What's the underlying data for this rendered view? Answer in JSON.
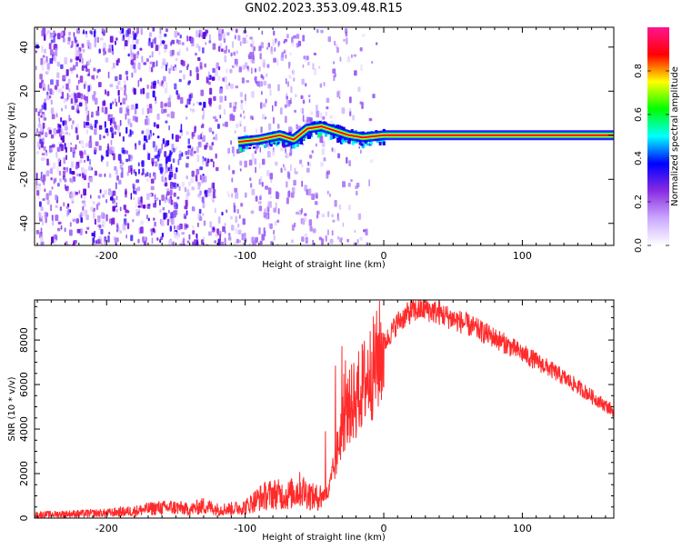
{
  "title": "GN02.2023.353.09.48.R15",
  "chart_data": [
    {
      "type": "heatmap",
      "title": "GN02.2023.353.09.48.R15",
      "xlabel": "Height of straight line (km)",
      "ylabel": "Frequency (Hz)",
      "xlim": [
        -252,
        166
      ],
      "ylim": [
        -50,
        49
      ],
      "xticks": [
        -200,
        -100,
        0,
        100
      ],
      "yticks": [
        -40,
        -20,
        0,
        20,
        40
      ],
      "colorbar": {
        "label": "Normalized spectral amplitude",
        "range": [
          0,
          1
        ],
        "ticks": [
          0.0,
          0.2,
          0.4,
          0.6,
          0.8
        ],
        "colors": [
          "#ffffff",
          "#c9a8ff",
          "#8a2be2",
          "#0000ff",
          "#00ffff",
          "#00ff00",
          "#ffff00",
          "#ff0000",
          "#ff1493"
        ]
      },
      "features": {
        "noise_region_x": [
          -252,
          -55
        ],
        "coherent_signal_x": [
          -110,
          166
        ],
        "signal_frequency_hz": [
          {
            "x": -105,
            "f": -3
          },
          {
            "x": -90,
            "f": -2
          },
          {
            "x": -75,
            "f": 0
          },
          {
            "x": -65,
            "f": -2
          },
          {
            "x": -55,
            "f": 3
          },
          {
            "x": -45,
            "f": 4
          },
          {
            "x": -35,
            "f": 2
          },
          {
            "x": -25,
            "f": 0
          },
          {
            "x": -15,
            "f": -1
          },
          {
            "x": 0,
            "f": 0
          },
          {
            "x": 166,
            "f": 0
          }
        ]
      }
    },
    {
      "type": "line",
      "xlabel": "Height of straight line (km)",
      "ylabel": "SNR (10 * v/v)",
      "xlim": [
        -252,
        166
      ],
      "ylim": [
        0,
        9800
      ],
      "xticks": [
        -200,
        -100,
        0,
        100
      ],
      "yticks": [
        0,
        2000,
        4000,
        6000,
        8000
      ],
      "color": "#ff2a2a",
      "x": [
        -252,
        -240,
        -220,
        -200,
        -180,
        -165,
        -150,
        -140,
        -130,
        -120,
        -110,
        -100,
        -90,
        -80,
        -70,
        -60,
        -50,
        -40,
        -35,
        -30,
        -25,
        -20,
        -15,
        -10,
        -5,
        0,
        10,
        20,
        30,
        40,
        60,
        80,
        100,
        120,
        140,
        166
      ],
      "y": [
        150,
        170,
        200,
        230,
        320,
        450,
        480,
        380,
        560,
        400,
        420,
        500,
        900,
        1100,
        1000,
        1300,
        900,
        1100,
        2500,
        4200,
        5000,
        5400,
        6000,
        6500,
        7000,
        7800,
        8800,
        9300,
        9400,
        9200,
        8700,
        8100,
        7400,
        6700,
        5900,
        4800
      ]
    }
  ]
}
